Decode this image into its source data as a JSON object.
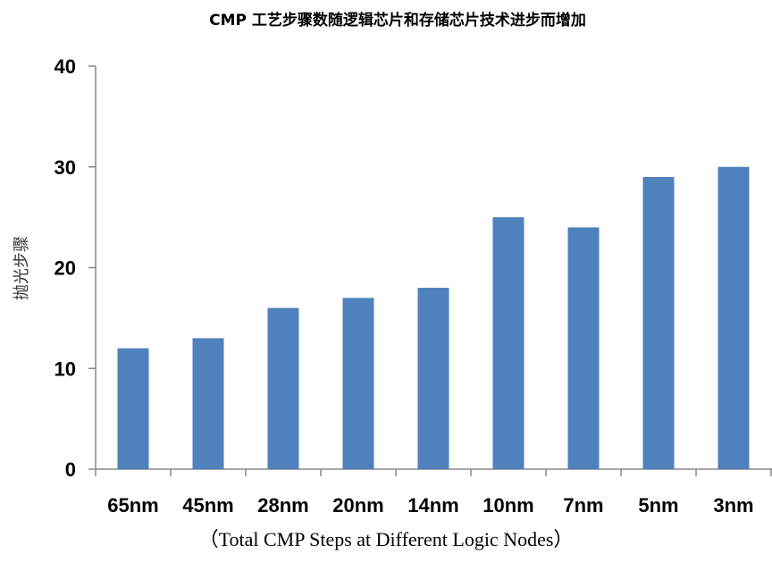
{
  "chart_data": {
    "type": "bar",
    "title": "CMP 工艺步骤数随逻辑芯片和存储芯片技术进步而增加",
    "ylabel": "抛光步骤",
    "xlabel": "",
    "caption": "（Total CMP Steps at Different Logic Nodes）",
    "categories": [
      "65nm",
      "45nm",
      "28nm",
      "20nm",
      "14nm",
      "10nm",
      "7nm",
      "5nm",
      "3nm"
    ],
    "values": [
      12,
      13,
      16,
      17,
      18,
      25,
      24,
      29,
      30
    ],
    "ylim": [
      0,
      40
    ],
    "yticks": [
      "0",
      "10",
      "20",
      "30",
      "40"
    ],
    "grid": false,
    "legend": "none",
    "colors": {
      "bar": "#4f81bd",
      "axis": "#888888"
    }
  }
}
